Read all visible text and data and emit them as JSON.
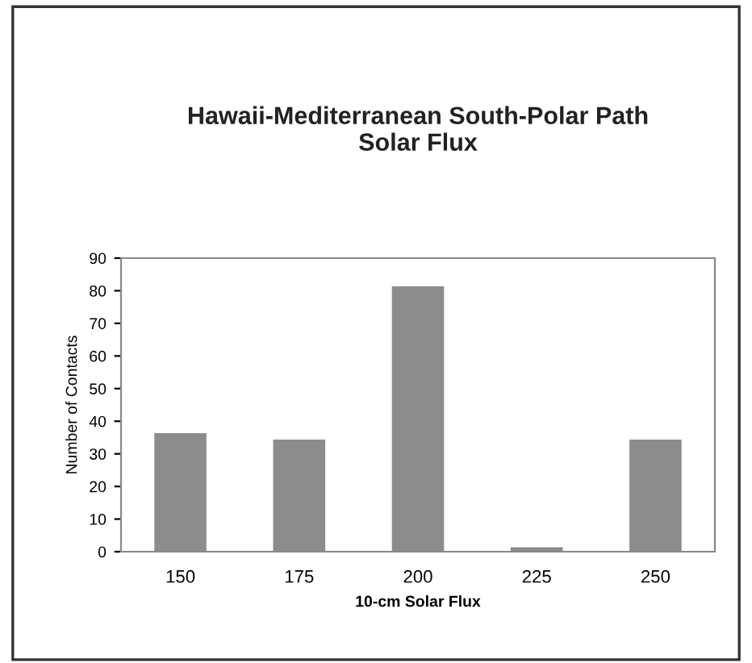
{
  "chart_data": {
    "type": "bar",
    "title": "Hawaii-Mediterranean South-Polar Path\nSolar Flux",
    "xlabel": "10-cm Solar Flux",
    "ylabel": "Number of Contacts",
    "categories": [
      "150",
      "175",
      "200",
      "225",
      "250"
    ],
    "values": [
      36,
      34,
      81,
      1,
      34
    ],
    "color": "#8c8c8c",
    "ylim": [
      0,
      90
    ],
    "yticks": [
      0,
      10,
      20,
      30,
      40,
      50,
      60,
      70,
      80,
      90
    ],
    "grid": false
  }
}
